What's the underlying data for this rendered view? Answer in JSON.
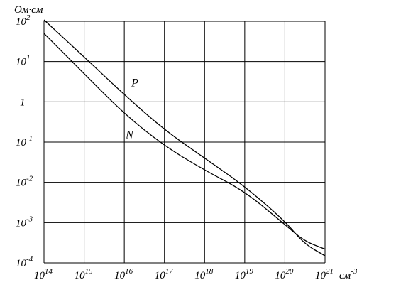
{
  "chart_data": {
    "type": "line",
    "xlabel": "см-3",
    "ylabel": "Ом·см",
    "x_scale": "log",
    "y_scale": "log",
    "xlim": [
      100000000000000.0,
      1e+21
    ],
    "ylim": [
      0.0001,
      100.0
    ],
    "grid": true,
    "x_ticks": [
      {
        "base": "10",
        "exp": "14"
      },
      {
        "base": "10",
        "exp": "15"
      },
      {
        "base": "10",
        "exp": "16"
      },
      {
        "base": "10",
        "exp": "17"
      },
      {
        "base": "10",
        "exp": "18"
      },
      {
        "base": "10",
        "exp": "19"
      },
      {
        "base": "10",
        "exp": "20"
      },
      {
        "base": "10",
        "exp": "21"
      }
    ],
    "x_unit": {
      "base": "см",
      "exp": "-3"
    },
    "y_ticks": [
      {
        "base": "10",
        "exp": "-4"
      },
      {
        "base": "10",
        "exp": "-3"
      },
      {
        "base": "10",
        "exp": "-2"
      },
      {
        "base": "10",
        "exp": "-1"
      },
      {
        "base": "1",
        "exp": ""
      },
      {
        "base": "10",
        "exp": "1"
      },
      {
        "base": "10",
        "exp": "2"
      }
    ],
    "series": [
      {
        "name": "P",
        "x": [
          100000000000000.0,
          1000000000000000.0,
          1e+16,
          1e+17,
          1e+18,
          1e+19,
          1e+20,
          3e+20,
          1e+21
        ],
        "y": [
          120,
          13,
          1.5,
          0.2,
          0.04,
          0.008,
          0.0011,
          0.0003,
          0.00015
        ]
      },
      {
        "name": "N",
        "x": [
          100000000000000.0,
          1000000000000000.0,
          1e+16,
          1e+17,
          1e+18,
          1e+19,
          1e+20,
          3e+20,
          1e+21
        ],
        "y": [
          50,
          5,
          0.5,
          0.08,
          0.02,
          0.006,
          0.0009,
          0.00035,
          0.00022
        ]
      }
    ]
  }
}
